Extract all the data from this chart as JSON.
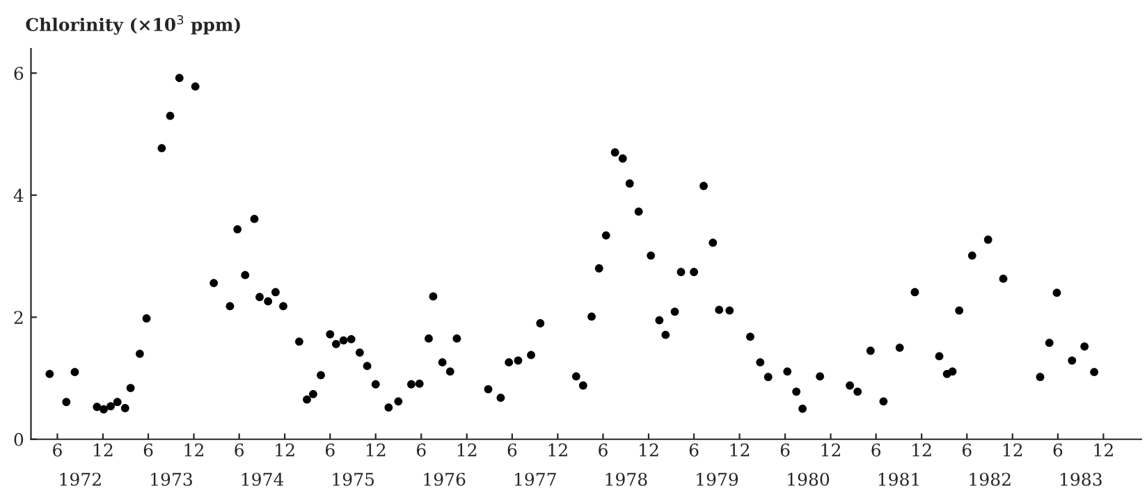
{
  "chart_data": {
    "type": "scatter",
    "ylabel": "Chlorinity (×10$^{3}$ ppm)",
    "x": [
      "1972-05-01",
      "1972-07-07",
      "1972-08-10",
      "1972-11-07",
      "1972-12-04",
      "1973-01-01",
      "1973-01-28",
      "1973-02-28",
      "1973-03-22",
      "1973-04-28",
      "1973-05-25",
      "1973-07-25",
      "1973-08-28",
      "1973-10-04",
      "1973-12-07",
      "1974-02-19",
      "1974-04-25",
      "1974-05-25",
      "1974-06-25",
      "1974-08-01",
      "1974-08-22",
      "1974-09-25",
      "1974-10-25",
      "1974-11-25",
      "1975-01-28",
      "1975-02-28",
      "1975-03-25",
      "1975-04-25",
      "1975-06-01",
      "1975-06-25",
      "1975-07-25",
      "1975-08-25",
      "1975-09-28",
      "1975-10-28",
      "1975-12-01",
      "1976-01-22",
      "1976-03-01",
      "1976-04-22",
      "1976-05-25",
      "1976-07-01",
      "1976-07-19",
      "1976-08-25",
      "1976-09-25",
      "1976-10-22",
      "1977-02-25",
      "1977-04-16",
      "1977-05-19",
      "1977-06-25",
      "1977-08-16",
      "1977-09-22",
      "1978-02-13",
      "1978-03-13",
      "1978-04-16",
      "1978-05-16",
      "1978-06-13",
      "1978-07-19",
      "1978-08-19",
      "1978-09-16",
      "1978-10-22",
      "1978-12-10",
      "1979-01-13",
      "1979-02-07",
      "1979-03-16",
      "1979-04-10",
      "1979-06-01",
      "1979-07-10",
      "1979-08-16",
      "1979-09-10",
      "1979-10-22",
      "1980-01-13",
      "1980-02-22",
      "1980-03-25",
      "1980-06-10",
      "1980-07-16",
      "1980-08-10",
      "1980-10-19",
      "1981-02-16",
      "1981-03-19",
      "1981-05-10",
      "1981-07-01",
      "1981-09-04",
      "1981-11-04",
      "1982-02-10",
      "1982-03-13",
      "1982-04-04",
      "1982-05-01",
      "1982-06-22",
      "1982-08-25",
      "1982-10-25",
      "1983-03-22",
      "1983-04-28",
      "1983-05-28",
      "1983-07-28",
      "1983-09-16",
      "1983-10-25"
    ],
    "series": [
      {
        "color": "#000000",
        "values": [
          1.07,
          0.61,
          1.1,
          0.53,
          0.49,
          0.54,
          0.61,
          0.51,
          0.84,
          1.4,
          1.98,
          4.77,
          5.3,
          5.92,
          5.78,
          2.56,
          2.18,
          3.44,
          2.69,
          3.61,
          2.33,
          2.26,
          2.41,
          2.18,
          1.6,
          0.65,
          0.74,
          1.05,
          1.72,
          1.56,
          1.62,
          1.64,
          1.42,
          1.2,
          0.9,
          0.52,
          0.62,
          0.9,
          0.91,
          1.65,
          2.34,
          1.26,
          1.11,
          1.65,
          0.82,
          0.68,
          1.26,
          1.29,
          1.38,
          1.9,
          1.03,
          0.88,
          2.01,
          2.8,
          3.34,
          4.7,
          4.6,
          4.19,
          3.73,
          3.01,
          1.95,
          1.71,
          2.09,
          2.74,
          2.74,
          4.15,
          3.22,
          2.12,
          2.11,
          1.68,
          1.26,
          1.02,
          1.11,
          0.78,
          0.5,
          1.03,
          0.88,
          0.78,
          1.45,
          0.62,
          1.5,
          2.41,
          1.36,
          1.07,
          1.11,
          2.11,
          3.01,
          3.27,
          2.63,
          1.02,
          1.58,
          2.4,
          1.29,
          1.52,
          1.1
        ]
      }
    ],
    "xlim": [
      "1972-02-16",
      "1984-05-01"
    ],
    "ylim": [
      0,
      6.4
    ],
    "yticks": [
      0,
      2,
      4,
      6
    ],
    "xticks": [
      {
        "value": "1972-06",
        "label": "6"
      },
      {
        "value": "1972-12",
        "label": "12"
      },
      {
        "value": "1973-06",
        "label": "6"
      },
      {
        "value": "1973-12",
        "label": "12"
      },
      {
        "value": "1974-06",
        "label": "6"
      },
      {
        "value": "1974-12",
        "label": "12"
      },
      {
        "value": "1975-06",
        "label": "6"
      },
      {
        "value": "1975-12",
        "label": "12"
      },
      {
        "value": "1976-06",
        "label": "6"
      },
      {
        "value": "1976-12",
        "label": "12"
      },
      {
        "value": "1977-06",
        "label": "6"
      },
      {
        "value": "1977-12",
        "label": "12"
      },
      {
        "value": "1978-06",
        "label": "6"
      },
      {
        "value": "1978-12",
        "label": "12"
      },
      {
        "value": "1979-06",
        "label": "6"
      },
      {
        "value": "1979-12",
        "label": "12"
      },
      {
        "value": "1980-06",
        "label": "6"
      },
      {
        "value": "1980-12",
        "label": "12"
      },
      {
        "value": "1981-06",
        "label": "6"
      },
      {
        "value": "1981-12",
        "label": "12"
      },
      {
        "value": "1982-06",
        "label": "6"
      },
      {
        "value": "1982-12",
        "label": "12"
      },
      {
        "value": "1983-06",
        "label": "6"
      },
      {
        "value": "1983-12",
        "label": "12"
      }
    ],
    "x2lim": [
      "1972-02-16",
      "1984-05-01"
    ],
    "x2ticks": [
      {
        "value": "1972-09",
        "label": "1972"
      },
      {
        "value": "1973-09",
        "label": "1973"
      },
      {
        "value": "1974-09",
        "label": "1974"
      },
      {
        "value": "1975-09",
        "label": "1975"
      },
      {
        "value": "1976-09",
        "label": "1976"
      },
      {
        "value": "1977-09",
        "label": "1977"
      },
      {
        "value": "1978-09",
        "label": "1978"
      },
      {
        "value": "1979-09",
        "label": "1979"
      },
      {
        "value": "1980-09",
        "label": "1980"
      },
      {
        "value": "1981-09",
        "label": "1981"
      },
      {
        "value": "1982-09",
        "label": "1982"
      },
      {
        "value": "1983-09",
        "label": "1983"
      }
    ],
    "marker": "circle",
    "grid": false,
    "legend": false
  }
}
